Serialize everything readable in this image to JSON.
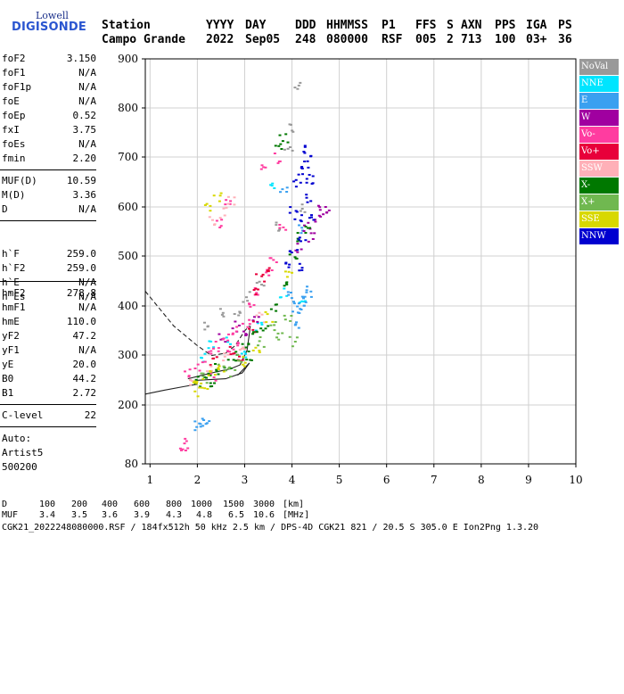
{
  "logo": {
    "top": "Lowell",
    "bottom": "DIGISONDE"
  },
  "header": {
    "labels": [
      "Station",
      "YYYY",
      "DAY",
      "DDD",
      "HHMMSS",
      "P1",
      "FFS",
      "S",
      "AXN",
      "PPS",
      "IGA",
      "PS"
    ],
    "values": [
      "Campo Grande",
      "2022",
      "Sep05",
      "248",
      "080000",
      "RSF",
      "005",
      "2",
      "713",
      "100",
      "03+",
      "36"
    ]
  },
  "parameters": {
    "group1": [
      {
        "name": "foF2",
        "value": "3.150"
      },
      {
        "name": "foF1",
        "value": "N/A"
      },
      {
        "name": "foF1p",
        "value": "N/A"
      },
      {
        "name": "foE",
        "value": "N/A"
      },
      {
        "name": "foEp",
        "value": "0.52"
      },
      {
        "name": "fxI",
        "value": "3.75"
      },
      {
        "name": "foEs",
        "value": "N/A"
      },
      {
        "name": "fmin",
        "value": "2.20"
      }
    ],
    "group2": [
      {
        "name": "MUF(D)",
        "value": "10.59"
      },
      {
        "name": "M(D)",
        "value": "3.36"
      },
      {
        "name": "D",
        "value": "N/A"
      }
    ],
    "group3": [
      {
        "name": "h`F",
        "value": "259.0"
      },
      {
        "name": "h`F2",
        "value": "259.0"
      },
      {
        "name": "h`E",
        "value": "N/A"
      },
      {
        "name": "h`Es",
        "value": "N/A"
      }
    ],
    "group4": [
      {
        "name": "hmF2",
        "value": "278.8"
      },
      {
        "name": "hmF1",
        "value": "N/A"
      },
      {
        "name": "hmE",
        "value": "110.0"
      },
      {
        "name": "yF2",
        "value": "47.2"
      },
      {
        "name": "yF1",
        "value": "N/A"
      },
      {
        "name": "yE",
        "value": "20.0"
      },
      {
        "name": "B0",
        "value": "44.2"
      },
      {
        "name": "B1",
        "value": "2.72"
      }
    ],
    "group5": [
      {
        "name": "C-level",
        "value": "22"
      }
    ],
    "autoscaling": [
      "Auto:",
      "Artist5",
      "500200"
    ]
  },
  "legend": [
    {
      "label": "NoVal",
      "color": "#999999"
    },
    {
      "label": "NNE",
      "color": "#00e5ff"
    },
    {
      "label": "E",
      "color": "#3aa0f0"
    },
    {
      "label": "W",
      "color": "#a000a0"
    },
    {
      "label": "Vo-",
      "color": "#ff3ca0"
    },
    {
      "label": "Vo+",
      "color": "#e8003a"
    },
    {
      "label": "SSW",
      "color": "#ffb0b8"
    },
    {
      "label": "X-",
      "color": "#007800"
    },
    {
      "label": "X+",
      "color": "#70b850"
    },
    {
      "label": "SSE",
      "color": "#d8d800"
    },
    {
      "label": "NNW",
      "color": "#0000d0"
    }
  ],
  "chart_data": {
    "type": "scatter",
    "title": "",
    "xlabel": "",
    "ylabel": "",
    "xlim": [
      0.9,
      10
    ],
    "ylim": [
      80,
      900
    ],
    "xticks": [
      1,
      2,
      3,
      4,
      5,
      6,
      7,
      8,
      9,
      10
    ],
    "yticks": [
      80,
      200,
      300,
      400,
      500,
      600,
      700,
      800,
      900
    ],
    "grid": true,
    "series": [
      {
        "name": "NoVal",
        "color": "#999999",
        "points": [
          [
            2.2,
            360
          ],
          [
            2.5,
            390
          ],
          [
            3.0,
            420
          ],
          [
            3.3,
            450
          ],
          [
            3.7,
            560
          ],
          [
            4.0,
            760
          ],
          [
            4.1,
            850
          ],
          [
            3.9,
            720
          ],
          [
            4.2,
            600
          ],
          [
            2.8,
            380
          ]
        ]
      },
      {
        "name": "NNE",
        "color": "#00e5ff",
        "points": [
          [
            2.1,
            300
          ],
          [
            2.3,
            320
          ],
          [
            2.6,
            330
          ],
          [
            3.3,
            360
          ],
          [
            3.8,
            430
          ],
          [
            3.6,
            650
          ],
          [
            4.2,
            420
          ],
          [
            3.0,
            300
          ]
        ]
      },
      {
        "name": "E",
        "color": "#3aa0f0",
        "points": [
          [
            2.0,
            160
          ],
          [
            2.1,
            162
          ],
          [
            2.15,
            165
          ],
          [
            3.9,
            420
          ],
          [
            4.0,
            400
          ],
          [
            4.1,
            390
          ],
          [
            4.2,
            410
          ],
          [
            4.3,
            420
          ],
          [
            4.1,
            360
          ],
          [
            3.8,
            640
          ],
          [
            4.2,
            560
          ],
          [
            4.3,
            440
          ]
        ]
      },
      {
        "name": "W",
        "color": "#a000a0",
        "points": [
          [
            2.5,
            340
          ],
          [
            3.2,
            370
          ],
          [
            4.3,
            560
          ],
          [
            4.5,
            580
          ],
          [
            4.6,
            600
          ],
          [
            4.7,
            590
          ],
          [
            4.4,
            540
          ],
          [
            4.1,
            520
          ],
          [
            2.8,
            360
          ],
          [
            3.0,
            350
          ]
        ]
      },
      {
        "name": "Vo-",
        "color": "#ff3ca0",
        "points": [
          [
            1.8,
            270
          ],
          [
            2.0,
            280
          ],
          [
            2.2,
            300
          ],
          [
            2.4,
            320
          ],
          [
            2.6,
            340
          ],
          [
            2.8,
            350
          ],
          [
            2.9,
            330
          ],
          [
            3.1,
            400
          ],
          [
            3.2,
            430
          ],
          [
            3.5,
            470
          ],
          [
            3.6,
            500
          ],
          [
            3.8,
            560
          ],
          [
            2.4,
            570
          ],
          [
            2.6,
            610
          ],
          [
            3.4,
            680
          ],
          [
            3.7,
            700
          ],
          [
            2.3,
            260
          ],
          [
            1.7,
            120
          ],
          [
            1.75,
            122
          ],
          [
            2.7,
            310
          ],
          [
            3.0,
            370
          ]
        ]
      },
      {
        "name": "Vo+",
        "color": "#e8003a",
        "points": [
          [
            2.3,
            290
          ],
          [
            2.7,
            310
          ],
          [
            3.1,
            360
          ],
          [
            3.2,
            430
          ],
          [
            3.3,
            460
          ],
          [
            3.5,
            480
          ],
          [
            2.9,
            300
          ]
        ]
      },
      {
        "name": "SSW",
        "color": "#ffb0b8",
        "points": [
          [
            1.9,
            250
          ],
          [
            2.2,
            270
          ],
          [
            2.6,
            300
          ],
          [
            2.9,
            310
          ],
          [
            3.3,
            380
          ],
          [
            2.5,
            590
          ],
          [
            2.7,
            615
          ],
          [
            2.3,
            575
          ]
        ]
      },
      {
        "name": "X-",
        "color": "#007800",
        "points": [
          [
            2.0,
            250
          ],
          [
            2.2,
            265
          ],
          [
            2.4,
            275
          ],
          [
            2.6,
            285
          ],
          [
            2.8,
            300
          ],
          [
            3.0,
            320
          ],
          [
            3.2,
            340
          ],
          [
            3.4,
            360
          ],
          [
            3.6,
            400
          ],
          [
            3.8,
            450
          ],
          [
            4.0,
            500
          ],
          [
            4.1,
            540
          ],
          [
            3.8,
            740
          ],
          [
            3.7,
            730
          ],
          [
            4.3,
            560
          ],
          [
            2.3,
            245
          ],
          [
            3.1,
            300
          ]
        ]
      },
      {
        "name": "X+",
        "color": "#70b850",
        "points": [
          [
            2.1,
            255
          ],
          [
            2.5,
            275
          ],
          [
            2.9,
            295
          ],
          [
            3.3,
            330
          ],
          [
            3.6,
            360
          ],
          [
            3.9,
            380
          ],
          [
            4.0,
            330
          ],
          [
            3.7,
            340
          ],
          [
            2.7,
            270
          ]
        ]
      },
      {
        "name": "SSE",
        "color": "#d8d800",
        "points": [
          [
            1.9,
            240
          ],
          [
            2.1,
            245
          ],
          [
            2.3,
            260
          ],
          [
            2.5,
            280
          ],
          [
            2.9,
            290
          ],
          [
            3.2,
            310
          ],
          [
            3.5,
            380
          ],
          [
            2.2,
            600
          ],
          [
            2.4,
            620
          ],
          [
            3.9,
            470
          ],
          [
            2.0,
            230
          ]
        ]
      },
      {
        "name": "NNW",
        "color": "#0000d0",
        "points": [
          [
            4.0,
            600
          ],
          [
            4.1,
            650
          ],
          [
            4.2,
            660
          ],
          [
            4.3,
            700
          ],
          [
            4.2,
            720
          ],
          [
            4.1,
            580
          ],
          [
            4.3,
            620
          ],
          [
            4.4,
            660
          ],
          [
            4.2,
            540
          ],
          [
            4.0,
            520
          ],
          [
            3.9,
            480
          ],
          [
            4.1,
            480
          ],
          [
            4.35,
            580
          ],
          [
            4.25,
            690
          ]
        ]
      }
    ],
    "curves": [
      {
        "name": "extrapolated",
        "style": "dashed",
        "points": [
          [
            0.9,
            430
          ],
          [
            1.5,
            360
          ],
          [
            2.0,
            320
          ],
          [
            2.3,
            300
          ],
          [
            2.6,
            305
          ],
          [
            2.8,
            320
          ],
          [
            3.0,
            350
          ],
          [
            3.1,
            360
          ]
        ]
      },
      {
        "name": "virtual-height-trace",
        "style": "solid",
        "points": [
          [
            1.8,
            253
          ],
          [
            2.1,
            260
          ],
          [
            2.4,
            267
          ],
          [
            2.7,
            273
          ],
          [
            2.9,
            281
          ],
          [
            3.05,
            310
          ],
          [
            3.1,
            345
          ],
          [
            3.12,
            360
          ]
        ]
      },
      {
        "name": "virtual-height-lower",
        "style": "solid",
        "points": [
          [
            2.0,
            250
          ],
          [
            2.6,
            253
          ],
          [
            2.95,
            265
          ],
          [
            3.1,
            285
          ],
          [
            2.85,
            260
          ]
        ]
      },
      {
        "name": "bottomside",
        "style": "solid",
        "points": [
          [
            0.9,
            222
          ],
          [
            1.3,
            230
          ],
          [
            1.7,
            237
          ],
          [
            2.0,
            242
          ]
        ]
      }
    ]
  },
  "footer": {
    "d_label": "D",
    "d_values": [
      "100",
      "200",
      "400",
      "600",
      "800",
      "1000",
      "1500",
      "3000",
      "[km]"
    ],
    "muf_label": "MUF",
    "muf_values": [
      "3.4",
      "3.5",
      "3.6",
      "3.9",
      "4.3",
      "4.8",
      "6.5",
      "10.6",
      "[MHz]"
    ],
    "file_line": "CGK21_2022248080000.RSF / 184fx512h 50 kHz 2.5 km / DPS-4D CGK21 821 / 20.5 S 305.0 E Ion2Png 1.3.20"
  }
}
